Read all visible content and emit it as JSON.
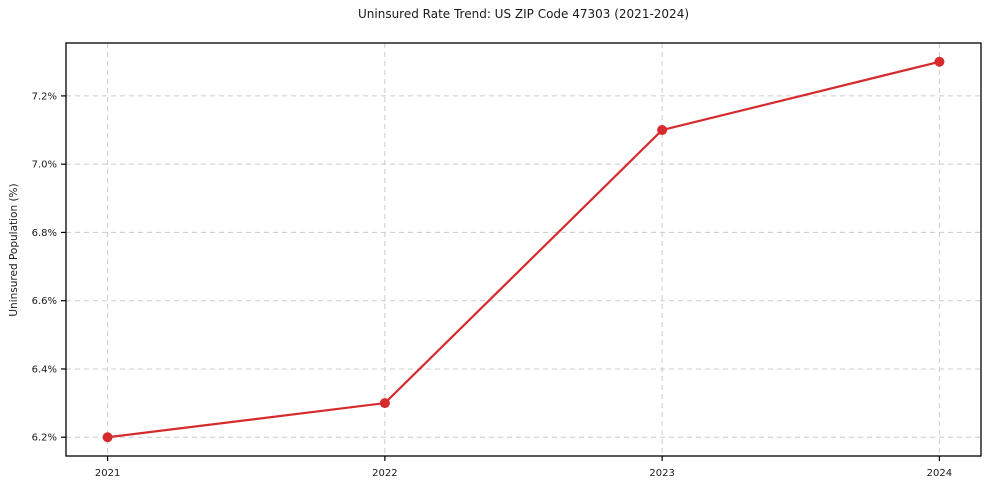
{
  "chart_data": {
    "type": "line",
    "title": "Uninsured Rate Trend: US ZIP Code 47303 (2021-2024)",
    "xlabel": "",
    "ylabel": "Uninsured Population (%)",
    "x": [
      2021,
      2022,
      2023,
      2024
    ],
    "series": [
      {
        "name": "Uninsured rate",
        "values": [
          6.2,
          6.3,
          7.1,
          7.3
        ]
      }
    ],
    "x_tick_labels": [
      "2021",
      "2022",
      "2023",
      "2024"
    ],
    "y_ticks": [
      6.2,
      6.4,
      6.6,
      6.8,
      7.0,
      7.2
    ],
    "y_tick_labels": [
      "6.2%",
      "6.4%",
      "6.6%",
      "6.8%",
      "7.0%",
      "7.2%"
    ],
    "xlim": [
      2020.85,
      2024.15
    ],
    "ylim": [
      6.145,
      7.355
    ],
    "grid": true,
    "grid_style": "dashed",
    "legend": false,
    "marker": "circle",
    "colors": {
      "line": "#d62b2e",
      "grid": "#cccccc",
      "axis": "#000000",
      "text": "#1a1a1a",
      "background": "#ffffff"
    }
  }
}
